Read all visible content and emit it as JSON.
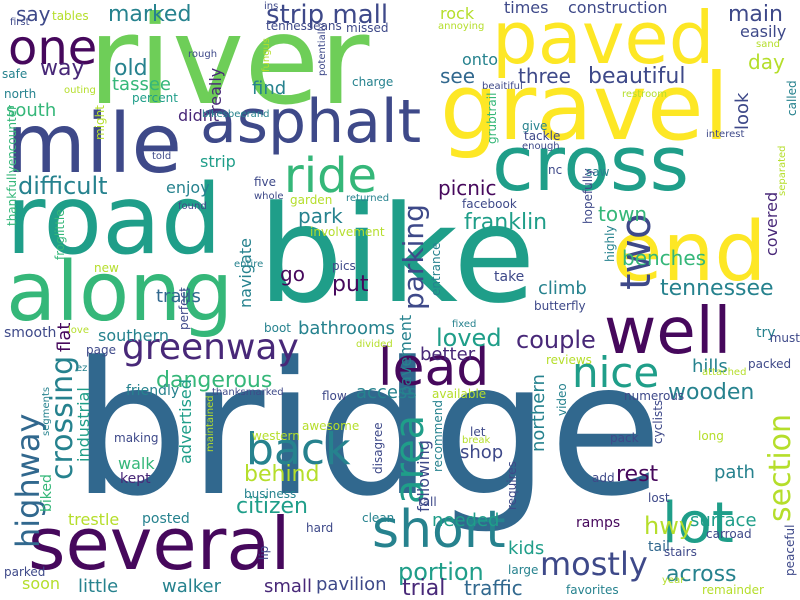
{
  "cloud": {
    "palette": {
      "dark_purple": "#46085c",
      "purple": "#482878",
      "indigo": "#3e4989",
      "blue": "#31688e",
      "teal": "#26828e",
      "green_teal": "#1f9e89",
      "green": "#35b779",
      "light_green": "#6ece58",
      "lime": "#b5de2b",
      "yellow": "#fde725"
    },
    "words": [
      {
        "text": "river",
        "color": "light_green",
        "rotated": false
      },
      {
        "text": "bike",
        "color": "green_teal",
        "rotated": false
      },
      {
        "text": "bridge",
        "color": "blue",
        "rotated": false
      },
      {
        "text": "gravel",
        "color": "yellow",
        "rotated": false
      },
      {
        "text": "paved",
        "color": "yellow",
        "rotated": false
      },
      {
        "text": "several",
        "color": "dark_purple",
        "rotated": false
      },
      {
        "text": "road",
        "color": "green_teal",
        "rotated": false
      },
      {
        "text": "along",
        "color": "green",
        "rotated": false
      },
      {
        "text": "mile",
        "color": "indigo",
        "rotated": false
      },
      {
        "text": "cross",
        "color": "green_teal",
        "rotated": false
      },
      {
        "text": "asphalt",
        "color": "indigo",
        "rotated": false
      },
      {
        "text": "end",
        "color": "yellow",
        "rotated": false
      },
      {
        "text": "well",
        "color": "dark_purple",
        "rotated": false
      },
      {
        "text": "greenway",
        "color": "purple",
        "rotated": false
      },
      {
        "text": "lead",
        "color": "dark_purple",
        "rotated": false
      },
      {
        "text": "lot",
        "color": "green_teal",
        "rotated": false
      },
      {
        "text": "short",
        "color": "teal",
        "rotated": false
      },
      {
        "text": "one",
        "color": "dark_purple",
        "rotated": false
      },
      {
        "text": "ride",
        "color": "green",
        "rotated": false
      },
      {
        "text": "two",
        "color": "indigo",
        "rotated": true
      },
      {
        "text": "back",
        "color": "teal",
        "rotated": false
      },
      {
        "text": "nice",
        "color": "green_teal",
        "rotated": false
      },
      {
        "text": "mostly",
        "color": "indigo",
        "rotated": false
      },
      {
        "text": "highway",
        "color": "blue",
        "rotated": true
      },
      {
        "text": "crossing",
        "color": "teal",
        "rotated": true
      },
      {
        "text": "area",
        "color": "green_teal",
        "rotated": true
      },
      {
        "text": "section",
        "color": "lime",
        "rotated": true
      },
      {
        "text": "parking",
        "color": "indigo",
        "rotated": true
      },
      {
        "text": "strip mall",
        "color": "indigo",
        "rotated": false
      },
      {
        "text": "difficult",
        "color": "teal",
        "rotated": false
      },
      {
        "text": "dangerous",
        "color": "green",
        "rotated": false
      },
      {
        "text": "behind",
        "color": "lime",
        "rotated": false
      },
      {
        "text": "couple",
        "color": "purple",
        "rotated": false
      },
      {
        "text": "portion",
        "color": "green_teal",
        "rotated": false
      },
      {
        "text": "loved",
        "color": "green_teal",
        "rotated": false
      },
      {
        "text": "citizen",
        "color": "green_teal",
        "rotated": false
      },
      {
        "text": "beautiful",
        "color": "indigo",
        "rotated": false
      },
      {
        "text": "franklin",
        "color": "green_teal",
        "rotated": false
      },
      {
        "text": "tennessee",
        "color": "teal",
        "rotated": false
      },
      {
        "text": "across",
        "color": "teal",
        "rotated": false
      },
      {
        "text": "marked",
        "color": "teal",
        "rotated": false
      },
      {
        "text": "wooden",
        "color": "teal",
        "rotated": false
      },
      {
        "text": "main",
        "color": "indigo",
        "rotated": false
      },
      {
        "text": "say",
        "color": "indigo",
        "rotated": false
      },
      {
        "text": "way",
        "color": "purple",
        "rotated": false
      },
      {
        "text": "old",
        "color": "teal",
        "rotated": false
      },
      {
        "text": "tassee",
        "color": "green",
        "rotated": false
      },
      {
        "text": "south",
        "color": "green",
        "rotated": false
      },
      {
        "text": "three",
        "color": "indigo",
        "rotated": false
      },
      {
        "text": "see",
        "color": "blue",
        "rotated": false
      },
      {
        "text": "picnic",
        "color": "dark_purple",
        "rotated": false
      },
      {
        "text": "park",
        "color": "teal",
        "rotated": false
      },
      {
        "text": "benches",
        "color": "green",
        "rotated": false
      },
      {
        "text": "town",
        "color": "green",
        "rotated": false
      },
      {
        "text": "put",
        "color": "dark_purple",
        "rotated": false
      },
      {
        "text": "bathrooms",
        "color": "teal",
        "rotated": false
      },
      {
        "text": "trails",
        "color": "blue",
        "rotated": false
      },
      {
        "text": "hwy",
        "color": "lime",
        "rotated": false
      },
      {
        "text": "kids",
        "color": "green_teal",
        "rotated": false
      },
      {
        "text": "surface",
        "color": "green_teal",
        "rotated": false
      },
      {
        "text": "trial",
        "color": "purple",
        "rotated": false
      },
      {
        "text": "traffic",
        "color": "blue",
        "rotated": false
      },
      {
        "text": "little",
        "color": "teal",
        "rotated": false
      },
      {
        "text": "walker",
        "color": "teal",
        "rotated": false
      },
      {
        "text": "pavilion",
        "color": "indigo",
        "rotated": false
      },
      {
        "text": "small",
        "color": "purple",
        "rotated": false
      },
      {
        "text": "needed",
        "color": "green_teal",
        "rotated": false
      },
      {
        "text": "shop",
        "color": "indigo",
        "rotated": false
      },
      {
        "text": "rest",
        "color": "dark_purple",
        "rotated": false
      },
      {
        "text": "path",
        "color": "teal",
        "rotated": false
      },
      {
        "text": "access",
        "color": "teal",
        "rotated": false
      },
      {
        "text": "better",
        "color": "purple",
        "rotated": false
      },
      {
        "text": "hills",
        "color": "teal",
        "rotated": false
      },
      {
        "text": "climb",
        "color": "teal",
        "rotated": false
      },
      {
        "text": "go",
        "color": "dark_purple",
        "rotated": false
      },
      {
        "text": "find",
        "color": "teal",
        "rotated": false
      },
      {
        "text": "enjoy",
        "color": "teal",
        "rotated": false
      },
      {
        "text": "strip",
        "color": "green_teal",
        "rotated": false
      },
      {
        "text": "didnt",
        "color": "purple",
        "rotated": false
      },
      {
        "text": "times",
        "color": "indigo",
        "rotated": false
      },
      {
        "text": "construction",
        "color": "indigo",
        "rotated": false
      },
      {
        "text": "day",
        "color": "lime",
        "rotated": false
      },
      {
        "text": "easily",
        "color": "indigo",
        "rotated": false
      },
      {
        "text": "rock",
        "color": "lime",
        "rotated": false
      },
      {
        "text": "onto",
        "color": "teal",
        "rotated": false
      },
      {
        "text": "walk",
        "color": "green",
        "rotated": false
      },
      {
        "text": "kept",
        "color": "purple",
        "rotated": false
      },
      {
        "text": "trestle",
        "color": "lime",
        "rotated": false
      },
      {
        "text": "posted",
        "color": "teal",
        "rotated": false
      },
      {
        "text": "soon",
        "color": "lime",
        "rotated": false
      },
      {
        "text": "ramps",
        "color": "dark_purple",
        "rotated": false
      },
      {
        "text": "tail",
        "color": "blue",
        "rotated": false
      },
      {
        "text": "southern",
        "color": "teal",
        "rotated": false
      },
      {
        "text": "flat",
        "color": "dark_purple",
        "rotated": true
      },
      {
        "text": "biked",
        "color": "green",
        "rotated": true
      },
      {
        "text": "industrial",
        "color": "green_teal",
        "rotated": true
      },
      {
        "text": "advertised",
        "color": "green_teal",
        "rotated": true
      },
      {
        "text": "navigate",
        "color": "teal",
        "rotated": true
      },
      {
        "text": "really",
        "color": "purple",
        "rotated": true
      },
      {
        "text": "pavement",
        "color": "teal",
        "rotated": true
      },
      {
        "text": "following",
        "color": "indigo",
        "rotated": true
      },
      {
        "text": "northern",
        "color": "teal",
        "rotated": true
      },
      {
        "text": "covered",
        "color": "purple",
        "rotated": true
      },
      {
        "text": "look",
        "color": "indigo",
        "rotated": true
      },
      {
        "text": "first",
        "color": "indigo",
        "rotated": false
      },
      {
        "text": "tables",
        "color": "lime",
        "rotated": false
      },
      {
        "text": "ins",
        "color": "indigo",
        "rotated": false
      },
      {
        "text": "tennesseans",
        "color": "indigo",
        "rotated": false
      },
      {
        "text": "missed",
        "color": "indigo",
        "rotated": false
      },
      {
        "text": "annoying",
        "color": "lime",
        "rotated": false
      },
      {
        "text": "safe",
        "color": "teal",
        "rotated": false
      },
      {
        "text": "north",
        "color": "teal",
        "rotated": false
      },
      {
        "text": "outing",
        "color": "lime",
        "rotated": false
      },
      {
        "text": "percent",
        "color": "green_teal",
        "rotated": false
      },
      {
        "text": "rough",
        "color": "indigo",
        "rotated": false
      },
      {
        "text": "charge",
        "color": "teal",
        "rotated": false
      },
      {
        "text": "beaitiful",
        "color": "indigo",
        "rotated": false
      },
      {
        "text": "restroom",
        "color": "lime",
        "rotated": false
      },
      {
        "text": "sand",
        "color": "lime",
        "rotated": false
      },
      {
        "text": "interest",
        "color": "indigo",
        "rotated": false
      },
      {
        "text": "give",
        "color": "teal",
        "rotated": false
      },
      {
        "text": "tackle",
        "color": "indigo",
        "rotated": false
      },
      {
        "text": "enough",
        "color": "indigo",
        "rotated": false
      },
      {
        "text": "bikesbeerand",
        "color": "teal",
        "rotated": false
      },
      {
        "text": "told",
        "color": "indigo",
        "rotated": false
      },
      {
        "text": "nc",
        "color": "indigo",
        "rotated": false
      },
      {
        "text": "saw",
        "color": "teal",
        "rotated": false
      },
      {
        "text": "five",
        "color": "indigo",
        "rotated": false
      },
      {
        "text": "whole",
        "color": "indigo",
        "rotated": false
      },
      {
        "text": "garden",
        "color": "lime",
        "rotated": false
      },
      {
        "text": "returned",
        "color": "teal",
        "rotated": false
      },
      {
        "text": "facebook",
        "color": "indigo",
        "rotated": false
      },
      {
        "text": "involvement",
        "color": "lime",
        "rotated": false
      },
      {
        "text": "found",
        "color": "indigo",
        "rotated": false
      },
      {
        "text": "new",
        "color": "lime",
        "rotated": false
      },
      {
        "text": "pics",
        "color": "indigo",
        "rotated": false
      },
      {
        "text": "entire",
        "color": "teal",
        "rotated": false
      },
      {
        "text": "take",
        "color": "indigo",
        "rotated": false
      },
      {
        "text": "butterfly",
        "color": "indigo",
        "rotated": false
      },
      {
        "text": "smooth",
        "color": "indigo",
        "rotated": false
      },
      {
        "text": "love",
        "color": "lime",
        "rotated": false
      },
      {
        "text": "boot",
        "color": "teal",
        "rotated": false
      },
      {
        "text": "fixed",
        "color": "teal",
        "rotated": false
      },
      {
        "text": "page",
        "color": "indigo",
        "rotated": false
      },
      {
        "text": "divided",
        "color": "lime",
        "rotated": false
      },
      {
        "text": "reviews",
        "color": "lime",
        "rotated": false
      },
      {
        "text": "try",
        "color": "teal",
        "rotated": false
      },
      {
        "text": "must",
        "color": "indigo",
        "rotated": false
      },
      {
        "text": "ez",
        "color": "teal",
        "rotated": false
      },
      {
        "text": "friendly",
        "color": "teal",
        "rotated": false
      },
      {
        "text": "thanksmarked",
        "color": "indigo",
        "rotated": false
      },
      {
        "text": "flow",
        "color": "indigo",
        "rotated": false
      },
      {
        "text": "available",
        "color": "lime",
        "rotated": false
      },
      {
        "text": "attached",
        "color": "lime",
        "rotated": false
      },
      {
        "text": "packed",
        "color": "indigo",
        "rotated": false
      },
      {
        "text": "numerous",
        "color": "indigo",
        "rotated": false
      },
      {
        "text": "awesome",
        "color": "lime",
        "rotated": false
      },
      {
        "text": "western",
        "color": "lime",
        "rotated": false
      },
      {
        "text": "let",
        "color": "indigo",
        "rotated": false
      },
      {
        "text": "pack",
        "color": "indigo",
        "rotated": false
      },
      {
        "text": "long",
        "color": "lime",
        "rotated": false
      },
      {
        "text": "making",
        "color": "indigo",
        "rotated": false
      },
      {
        "text": "break",
        "color": "lime",
        "rotated": false
      },
      {
        "text": "add",
        "color": "indigo",
        "rotated": false
      },
      {
        "text": "lost",
        "color": "indigo",
        "rotated": false
      },
      {
        "text": "business",
        "color": "teal",
        "rotated": false
      },
      {
        "text": "tall",
        "color": "indigo",
        "rotated": false
      },
      {
        "text": "clean",
        "color": "teal",
        "rotated": false
      },
      {
        "text": "hard",
        "color": "indigo",
        "rotated": false
      },
      {
        "text": "carroad",
        "color": "indigo",
        "rotated": false
      },
      {
        "text": "stairs",
        "color": "indigo",
        "rotated": false
      },
      {
        "text": "parked",
        "color": "indigo",
        "rotated": false
      },
      {
        "text": "large",
        "color": "teal",
        "rotated": false
      },
      {
        "text": "favorites",
        "color": "teal",
        "rotated": false
      },
      {
        "text": "year",
        "color": "lime",
        "rotated": false
      },
      {
        "text": "remainder",
        "color": "lime",
        "rotated": false
      },
      {
        "text": "fungus",
        "color": "lime",
        "rotated": true
      },
      {
        "text": "potentially",
        "color": "indigo",
        "rotated": true
      },
      {
        "text": "grubtrail",
        "color": "green",
        "rotated": true
      },
      {
        "text": "called",
        "color": "teal",
        "rotated": true
      },
      {
        "text": "separated",
        "color": "lime",
        "rotated": true
      },
      {
        "text": "hopefully",
        "color": "indigo",
        "rotated": true
      },
      {
        "text": "highly",
        "color": "teal",
        "rotated": true
      },
      {
        "text": "entrance",
        "color": "teal",
        "rotated": true
      },
      {
        "text": "froglittle",
        "color": "green",
        "rotated": true
      },
      {
        "text": "thankfullyencounter",
        "color": "green",
        "rotated": true
      },
      {
        "text": "perfect",
        "color": "indigo",
        "rotated": true
      },
      {
        "text": "might",
        "color": "lime",
        "rotated": true
      },
      {
        "text": "segments",
        "color": "teal",
        "rotated": true
      },
      {
        "text": "maintained",
        "color": "lime",
        "rotated": true
      },
      {
        "text": "video",
        "color": "teal",
        "rotated": true
      },
      {
        "text": "requires",
        "color": "indigo",
        "rotated": true
      },
      {
        "text": "recommend",
        "color": "teal",
        "rotated": true
      },
      {
        "text": "disagree",
        "color": "indigo",
        "rotated": true
      },
      {
        "text": "cyclists",
        "color": "indigo",
        "rotated": true
      },
      {
        "text": "lip",
        "color": "indigo",
        "rotated": true
      },
      {
        "text": "peaceful",
        "color": "indigo",
        "rotated": true
      }
    ]
  }
}
